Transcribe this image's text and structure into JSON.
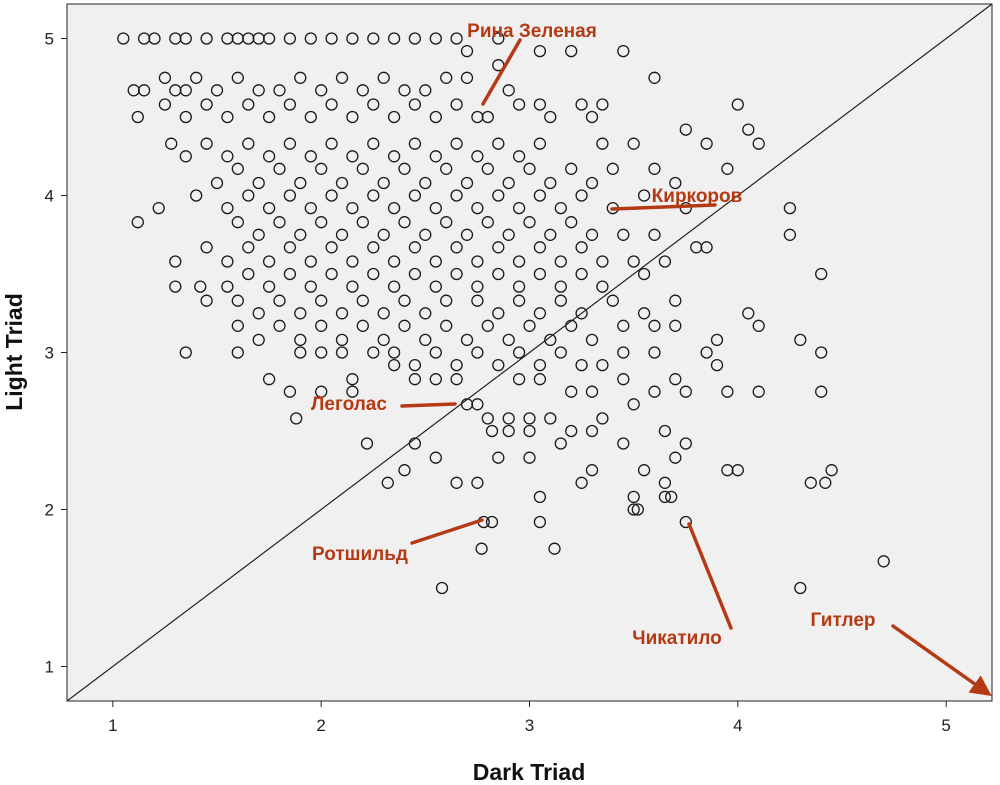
{
  "colors": {
    "plot_background": "#f0f0f0",
    "marker_stroke": "#1a1a1a",
    "annotation": "#b53a14",
    "reference_line": "#222222"
  },
  "chart_data": {
    "type": "scatter",
    "xlabel": "Dark Triad",
    "ylabel": "Light Triad",
    "xlim": [
      0.78,
      5.22
    ],
    "ylim": [
      0.78,
      5.22
    ],
    "xticks": [
      1,
      2,
      3,
      4,
      5
    ],
    "yticks": [
      1,
      2,
      3,
      4,
      5
    ],
    "grid": false,
    "legend": "none",
    "marker": "open-circle",
    "reference_line": {
      "from": [
        0.78,
        0.78
      ],
      "to": [
        5.22,
        5.22
      ]
    },
    "points": [
      [
        1.05,
        5.0
      ],
      [
        1.15,
        5.0
      ],
      [
        1.2,
        5.0
      ],
      [
        1.3,
        5.0
      ],
      [
        1.35,
        5.0
      ],
      [
        1.45,
        5.0
      ],
      [
        1.55,
        5.0
      ],
      [
        1.6,
        5.0
      ],
      [
        1.65,
        5.0
      ],
      [
        1.7,
        5.0
      ],
      [
        1.75,
        5.0
      ],
      [
        1.85,
        5.0
      ],
      [
        1.95,
        5.0
      ],
      [
        2.05,
        5.0
      ],
      [
        2.15,
        5.0
      ],
      [
        2.25,
        5.0
      ],
      [
        2.35,
        5.0
      ],
      [
        2.45,
        5.0
      ],
      [
        2.55,
        5.0
      ],
      [
        2.65,
        5.0
      ],
      [
        2.85,
        5.0
      ],
      [
        3.05,
        4.92
      ],
      [
        3.2,
        4.92
      ],
      [
        3.45,
        4.92
      ],
      [
        2.7,
        4.92
      ],
      [
        1.1,
        4.67
      ],
      [
        1.15,
        4.67
      ],
      [
        1.25,
        4.75
      ],
      [
        1.3,
        4.67
      ],
      [
        1.35,
        4.67
      ],
      [
        1.4,
        4.75
      ],
      [
        1.5,
        4.67
      ],
      [
        1.6,
        4.75
      ],
      [
        1.7,
        4.67
      ],
      [
        1.8,
        4.67
      ],
      [
        1.9,
        4.75
      ],
      [
        2.0,
        4.67
      ],
      [
        2.1,
        4.75
      ],
      [
        2.2,
        4.67
      ],
      [
        2.3,
        4.75
      ],
      [
        2.4,
        4.67
      ],
      [
        2.5,
        4.67
      ],
      [
        2.6,
        4.75
      ],
      [
        2.7,
        4.75
      ],
      [
        2.85,
        4.83
      ],
      [
        2.9,
        4.67
      ],
      [
        3.6,
        4.75
      ],
      [
        1.12,
        4.5
      ],
      [
        1.25,
        4.58
      ],
      [
        1.35,
        4.5
      ],
      [
        1.45,
        4.58
      ],
      [
        1.55,
        4.5
      ],
      [
        1.65,
        4.58
      ],
      [
        1.75,
        4.5
      ],
      [
        1.85,
        4.58
      ],
      [
        1.95,
        4.5
      ],
      [
        2.05,
        4.58
      ],
      [
        2.15,
        4.5
      ],
      [
        2.25,
        4.58
      ],
      [
        2.35,
        4.5
      ],
      [
        2.45,
        4.58
      ],
      [
        2.55,
        4.5
      ],
      [
        2.65,
        4.58
      ],
      [
        2.75,
        4.5
      ],
      [
        2.8,
        4.5
      ],
      [
        2.95,
        4.58
      ],
      [
        3.05,
        4.58
      ],
      [
        3.1,
        4.5
      ],
      [
        3.25,
        4.58
      ],
      [
        3.3,
        4.5
      ],
      [
        3.35,
        4.58
      ],
      [
        4.0,
        4.58
      ],
      [
        3.75,
        4.42
      ],
      [
        4.05,
        4.42
      ],
      [
        4.1,
        4.33
      ],
      [
        1.28,
        4.33
      ],
      [
        1.35,
        4.25
      ],
      [
        1.45,
        4.33
      ],
      [
        1.55,
        4.25
      ],
      [
        1.65,
        4.33
      ],
      [
        1.75,
        4.25
      ],
      [
        1.85,
        4.33
      ],
      [
        1.95,
        4.25
      ],
      [
        2.05,
        4.33
      ],
      [
        2.15,
        4.25
      ],
      [
        2.25,
        4.33
      ],
      [
        2.35,
        4.25
      ],
      [
        2.45,
        4.33
      ],
      [
        2.55,
        4.25
      ],
      [
        2.65,
        4.33
      ],
      [
        2.75,
        4.25
      ],
      [
        2.85,
        4.33
      ],
      [
        2.95,
        4.25
      ],
      [
        3.05,
        4.33
      ],
      [
        3.35,
        4.33
      ],
      [
        3.5,
        4.33
      ],
      [
        3.85,
        4.33
      ],
      [
        3.95,
        4.17
      ],
      [
        1.5,
        4.08
      ],
      [
        1.6,
        4.17
      ],
      [
        1.7,
        4.08
      ],
      [
        1.8,
        4.17
      ],
      [
        1.9,
        4.08
      ],
      [
        2.0,
        4.17
      ],
      [
        2.1,
        4.08
      ],
      [
        2.2,
        4.17
      ],
      [
        2.3,
        4.08
      ],
      [
        2.4,
        4.17
      ],
      [
        2.5,
        4.08
      ],
      [
        2.6,
        4.17
      ],
      [
        2.7,
        4.08
      ],
      [
        2.8,
        4.17
      ],
      [
        2.9,
        4.08
      ],
      [
        3.0,
        4.17
      ],
      [
        3.1,
        4.08
      ],
      [
        3.2,
        4.17
      ],
      [
        3.3,
        4.08
      ],
      [
        3.4,
        4.17
      ],
      [
        3.6,
        4.17
      ],
      [
        3.7,
        4.08
      ],
      [
        1.4,
        4.0
      ],
      [
        1.55,
        3.92
      ],
      [
        1.65,
        4.0
      ],
      [
        1.75,
        3.92
      ],
      [
        1.85,
        4.0
      ],
      [
        1.95,
        3.92
      ],
      [
        2.05,
        4.0
      ],
      [
        2.15,
        3.92
      ],
      [
        2.25,
        4.0
      ],
      [
        2.35,
        3.92
      ],
      [
        2.45,
        4.0
      ],
      [
        2.55,
        3.92
      ],
      [
        2.65,
        4.0
      ],
      [
        2.75,
        3.92
      ],
      [
        2.85,
        4.0
      ],
      [
        2.95,
        3.92
      ],
      [
        3.05,
        4.0
      ],
      [
        3.15,
        3.92
      ],
      [
        3.25,
        4.0
      ],
      [
        3.4,
        3.92
      ],
      [
        3.55,
        4.0
      ],
      [
        3.75,
        3.92
      ],
      [
        4.25,
        3.92
      ],
      [
        1.12,
        3.83
      ],
      [
        1.22,
        3.92
      ],
      [
        1.6,
        3.83
      ],
      [
        1.7,
        3.75
      ],
      [
        1.8,
        3.83
      ],
      [
        1.9,
        3.75
      ],
      [
        2.0,
        3.83
      ],
      [
        2.1,
        3.75
      ],
      [
        2.2,
        3.83
      ],
      [
        2.3,
        3.75
      ],
      [
        2.4,
        3.83
      ],
      [
        2.5,
        3.75
      ],
      [
        2.6,
        3.83
      ],
      [
        2.7,
        3.75
      ],
      [
        2.8,
        3.83
      ],
      [
        2.9,
        3.75
      ],
      [
        3.0,
        3.83
      ],
      [
        3.1,
        3.75
      ],
      [
        3.2,
        3.83
      ],
      [
        3.3,
        3.75
      ],
      [
        3.45,
        3.75
      ],
      [
        3.6,
        3.75
      ],
      [
        3.8,
        3.67
      ],
      [
        3.85,
        3.67
      ],
      [
        4.25,
        3.75
      ],
      [
        1.45,
        3.67
      ],
      [
        1.55,
        3.58
      ],
      [
        1.65,
        3.67
      ],
      [
        1.75,
        3.58
      ],
      [
        1.85,
        3.67
      ],
      [
        1.95,
        3.58
      ],
      [
        2.05,
        3.67
      ],
      [
        2.15,
        3.58
      ],
      [
        2.25,
        3.67
      ],
      [
        2.35,
        3.58
      ],
      [
        2.45,
        3.67
      ],
      [
        2.55,
        3.58
      ],
      [
        2.65,
        3.67
      ],
      [
        2.75,
        3.58
      ],
      [
        2.85,
        3.67
      ],
      [
        2.95,
        3.58
      ],
      [
        3.05,
        3.67
      ],
      [
        3.15,
        3.58
      ],
      [
        3.25,
        3.67
      ],
      [
        3.35,
        3.58
      ],
      [
        3.5,
        3.58
      ],
      [
        3.65,
        3.58
      ],
      [
        1.3,
        3.58
      ],
      [
        1.3,
        3.42
      ],
      [
        1.42,
        3.42
      ],
      [
        1.55,
        3.42
      ],
      [
        1.65,
        3.5
      ],
      [
        1.75,
        3.42
      ],
      [
        1.85,
        3.5
      ],
      [
        1.95,
        3.42
      ],
      [
        2.05,
        3.5
      ],
      [
        2.15,
        3.42
      ],
      [
        2.25,
        3.5
      ],
      [
        2.35,
        3.42
      ],
      [
        2.45,
        3.5
      ],
      [
        2.55,
        3.42
      ],
      [
        2.65,
        3.5
      ],
      [
        2.75,
        3.42
      ],
      [
        2.85,
        3.5
      ],
      [
        2.95,
        3.42
      ],
      [
        3.05,
        3.5
      ],
      [
        3.15,
        3.42
      ],
      [
        3.25,
        3.5
      ],
      [
        3.35,
        3.42
      ],
      [
        3.55,
        3.5
      ],
      [
        4.4,
        3.5
      ],
      [
        1.45,
        3.33
      ],
      [
        1.6,
        3.33
      ],
      [
        1.7,
        3.25
      ],
      [
        1.8,
        3.33
      ],
      [
        1.9,
        3.25
      ],
      [
        2.0,
        3.33
      ],
      [
        2.1,
        3.25
      ],
      [
        2.2,
        3.33
      ],
      [
        2.3,
        3.25
      ],
      [
        2.4,
        3.33
      ],
      [
        2.5,
        3.25
      ],
      [
        2.6,
        3.33
      ],
      [
        2.75,
        3.33
      ],
      [
        2.85,
        3.25
      ],
      [
        2.95,
        3.33
      ],
      [
        3.05,
        3.25
      ],
      [
        3.15,
        3.33
      ],
      [
        3.25,
        3.25
      ],
      [
        3.4,
        3.33
      ],
      [
        3.55,
        3.25
      ],
      [
        3.7,
        3.33
      ],
      [
        4.05,
        3.25
      ],
      [
        1.6,
        3.17
      ],
      [
        1.7,
        3.08
      ],
      [
        1.8,
        3.17
      ],
      [
        1.9,
        3.08
      ],
      [
        2.0,
        3.17
      ],
      [
        2.1,
        3.08
      ],
      [
        2.2,
        3.17
      ],
      [
        2.3,
        3.08
      ],
      [
        2.4,
        3.17
      ],
      [
        2.5,
        3.08
      ],
      [
        2.6,
        3.17
      ],
      [
        2.7,
        3.08
      ],
      [
        2.8,
        3.17
      ],
      [
        2.9,
        3.08
      ],
      [
        3.0,
        3.17
      ],
      [
        3.1,
        3.08
      ],
      [
        3.2,
        3.17
      ],
      [
        3.3,
        3.08
      ],
      [
        3.45,
        3.17
      ],
      [
        3.6,
        3.17
      ],
      [
        3.7,
        3.17
      ],
      [
        3.9,
        3.08
      ],
      [
        4.1,
        3.17
      ],
      [
        4.3,
        3.08
      ],
      [
        1.35,
        3.0
      ],
      [
        1.6,
        3.0
      ],
      [
        1.9,
        3.0
      ],
      [
        2.0,
        3.0
      ],
      [
        2.1,
        3.0
      ],
      [
        2.25,
        3.0
      ],
      [
        2.35,
        3.0
      ],
      [
        2.45,
        2.92
      ],
      [
        2.55,
        3.0
      ],
      [
        2.65,
        2.92
      ],
      [
        2.75,
        3.0
      ],
      [
        2.85,
        2.92
      ],
      [
        2.95,
        3.0
      ],
      [
        3.05,
        2.92
      ],
      [
        3.15,
        3.0
      ],
      [
        3.25,
        2.92
      ],
      [
        3.35,
        2.92
      ],
      [
        3.45,
        3.0
      ],
      [
        3.6,
        3.0
      ],
      [
        3.85,
        3.0
      ],
      [
        4.4,
        3.0
      ],
      [
        1.75,
        2.83
      ],
      [
        2.15,
        2.83
      ],
      [
        2.35,
        2.92
      ],
      [
        2.45,
        2.83
      ],
      [
        2.55,
        2.83
      ],
      [
        2.65,
        2.83
      ],
      [
        2.95,
        2.83
      ],
      [
        3.05,
        2.83
      ],
      [
        3.2,
        2.75
      ],
      [
        3.3,
        2.75
      ],
      [
        3.45,
        2.83
      ],
      [
        3.7,
        2.83
      ],
      [
        3.9,
        2.92
      ],
      [
        1.85,
        2.75
      ],
      [
        2.0,
        2.75
      ],
      [
        2.15,
        2.75
      ],
      [
        2.7,
        2.67
      ],
      [
        2.75,
        2.67
      ],
      [
        2.8,
        2.58
      ],
      [
        2.9,
        2.58
      ],
      [
        3.0,
        2.58
      ],
      [
        3.1,
        2.58
      ],
      [
        3.2,
        2.5
      ],
      [
        3.35,
        2.58
      ],
      [
        3.5,
        2.67
      ],
      [
        3.6,
        2.75
      ],
      [
        3.75,
        2.75
      ],
      [
        3.95,
        2.75
      ],
      [
        4.1,
        2.75
      ],
      [
        4.4,
        2.75
      ],
      [
        1.88,
        2.58
      ],
      [
        2.82,
        2.5
      ],
      [
        2.9,
        2.5
      ],
      [
        3.0,
        2.5
      ],
      [
        3.15,
        2.42
      ],
      [
        3.3,
        2.5
      ],
      [
        3.45,
        2.42
      ],
      [
        3.65,
        2.5
      ],
      [
        3.75,
        2.42
      ],
      [
        2.22,
        2.42
      ],
      [
        2.45,
        2.42
      ],
      [
        2.55,
        2.33
      ],
      [
        2.85,
        2.33
      ],
      [
        3.0,
        2.33
      ],
      [
        3.3,
        2.25
      ],
      [
        3.55,
        2.25
      ],
      [
        3.7,
        2.33
      ],
      [
        3.95,
        2.25
      ],
      [
        4.0,
        2.25
      ],
      [
        4.45,
        2.25
      ],
      [
        2.4,
        2.25
      ],
      [
        2.32,
        2.17
      ],
      [
        2.65,
        2.17
      ],
      [
        2.75,
        2.17
      ],
      [
        3.25,
        2.17
      ],
      [
        3.65,
        2.17
      ],
      [
        4.35,
        2.17
      ],
      [
        4.42,
        2.17
      ],
      [
        3.05,
        2.08
      ],
      [
        3.5,
        2.08
      ],
      [
        3.65,
        2.08
      ],
      [
        3.68,
        2.08
      ],
      [
        3.5,
        2.0
      ],
      [
        3.52,
        2.0
      ],
      [
        2.78,
        1.92
      ],
      [
        2.82,
        1.92
      ],
      [
        3.05,
        1.92
      ],
      [
        3.75,
        1.92
      ],
      [
        2.77,
        1.75
      ],
      [
        3.12,
        1.75
      ],
      [
        2.58,
        1.5
      ],
      [
        4.3,
        1.5
      ],
      [
        4.7,
        1.67
      ]
    ],
    "annotations": [
      {
        "label": "Рина Зеленая",
        "point": [
          2.78,
          4.58
        ]
      },
      {
        "label": "Киркоров",
        "point": [
          3.42,
          3.92
        ]
      },
      {
        "label": "Леголас",
        "point": [
          2.62,
          2.67
        ]
      },
      {
        "label": "Ротшильд",
        "point": [
          2.77,
          1.92
        ]
      },
      {
        "label": "Чикатило",
        "point": [
          3.75,
          1.92
        ]
      },
      {
        "label": "Гитлер",
        "point": [
          5.2,
          0.8
        ]
      }
    ]
  }
}
